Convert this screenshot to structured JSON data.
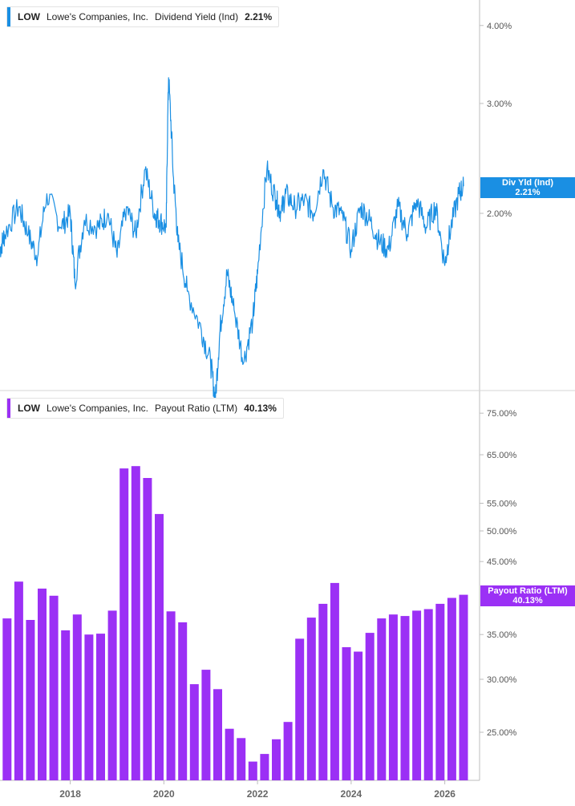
{
  "colors": {
    "yield_line": "#1a8fe3",
    "payout_bar": "#9b30f5",
    "axis": "#bdbdbd",
    "divider": "#d4d4d4"
  },
  "chart_data": [
    {
      "type": "line",
      "legend": {
        "ticker": "LOW",
        "company": "Lowe's Companies, Inc.",
        "metric": "Dividend Yield (Ind)",
        "value": "2.21%"
      },
      "flag": {
        "label": "Div Yld (Ind)",
        "value": "2.21%"
      },
      "yscale": "log",
      "yticks": [
        {
          "value": 2.0,
          "label": "2.00%"
        },
        {
          "value": 3.0,
          "label": "3.00%"
        },
        {
          "value": 4.0,
          "label": "4.00%"
        }
      ],
      "last_value": 2.21,
      "x": [
        2016.5,
        2016.6,
        2016.9,
        2017.1,
        2017.3,
        2017.5,
        2017.8,
        2018.0,
        2018.1,
        2018.3,
        2018.6,
        2018.8,
        2019.0,
        2019.2,
        2019.4,
        2019.6,
        2019.8,
        2019.9,
        2020.05,
        2020.1,
        2020.2,
        2020.3,
        2020.5,
        2020.8,
        2021.0,
        2021.1,
        2021.2,
        2021.35,
        2021.5,
        2021.7,
        2021.9,
        2022.0,
        2022.2,
        2022.4,
        2022.5,
        2022.6,
        2022.8,
        2023.0,
        2023.2,
        2023.4,
        2023.6,
        2023.8,
        2024.0,
        2024.2,
        2024.4,
        2024.6,
        2024.8,
        2025.0,
        2025.2,
        2025.4,
        2025.6,
        2025.8,
        2026.0,
        2026.1,
        2026.3,
        2026.4
      ],
      "y": [
        1.75,
        1.85,
        2.05,
        1.85,
        1.7,
        2.15,
        1.9,
        2.0,
        1.55,
        1.95,
        1.9,
        2.0,
        1.7,
        2.05,
        1.85,
        2.35,
        2.0,
        1.95,
        1.9,
        3.3,
        2.3,
        1.8,
        1.5,
        1.3,
        1.15,
        1.0,
        1.3,
        1.6,
        1.4,
        1.15,
        1.35,
        1.6,
        2.35,
        2.1,
        2.0,
        2.15,
        2.05,
        2.1,
        2.0,
        2.35,
        2.05,
        2.0,
        1.75,
        2.05,
        1.95,
        1.8,
        1.75,
        2.05,
        1.85,
        2.1,
        1.9,
        2.05,
        1.65,
        1.85,
        2.15,
        2.21
      ]
    },
    {
      "type": "bar",
      "legend": {
        "ticker": "LOW",
        "company": "Lowe's Companies, Inc.",
        "metric": "Payout Ratio (LTM)",
        "value": "40.13%"
      },
      "flag": {
        "label": "Payout Ratio (LTM)",
        "value": "40.13%"
      },
      "yscale": "log",
      "yticks": [
        {
          "value": 25,
          "label": "25.00%"
        },
        {
          "value": 30,
          "label": "30.00%"
        },
        {
          "value": 35,
          "label": "35.00%"
        },
        {
          "value": 45,
          "label": "45.00%"
        },
        {
          "value": 50,
          "label": "50.00%"
        },
        {
          "value": 55,
          "label": "55.00%"
        },
        {
          "value": 65,
          "label": "65.00%"
        },
        {
          "value": 75,
          "label": "75.00%"
        }
      ],
      "xticks": [
        {
          "value": 2018,
          "label": "2018"
        },
        {
          "value": 2020,
          "label": "2020"
        },
        {
          "value": 2022,
          "label": "2022"
        },
        {
          "value": 2024,
          "label": "2024"
        },
        {
          "value": 2026,
          "label": "2026"
        }
      ],
      "x": [
        2016.4,
        2016.65,
        2016.9,
        2017.15,
        2017.4,
        2017.65,
        2017.9,
        2018.15,
        2018.4,
        2018.65,
        2018.9,
        2019.15,
        2019.4,
        2019.65,
        2019.9,
        2020.15,
        2020.4,
        2020.65,
        2020.9,
        2021.15,
        2021.4,
        2021.65,
        2021.9,
        2022.15,
        2022.4,
        2022.65,
        2022.9,
        2023.15,
        2023.4,
        2023.65,
        2023.9,
        2024.15,
        2024.4,
        2024.65,
        2024.9,
        2025.15,
        2025.4,
        2025.65,
        2025.9,
        2026.15,
        2026.4
      ],
      "values": [
        36.5,
        37.0,
        42.0,
        36.8,
        41.0,
        40.0,
        35.5,
        37.5,
        35.0,
        35.1,
        38.0,
        62.0,
        62.5,
        60.0,
        53.0,
        37.9,
        36.5,
        29.5,
        31.0,
        29.0,
        25.3,
        24.5,
        22.6,
        23.2,
        24.4,
        25.9,
        34.5,
        37.1,
        38.9,
        41.8,
        33.5,
        33.0,
        35.2,
        37.0,
        37.5,
        37.3,
        38.0,
        38.2,
        38.9,
        39.7,
        40.13
      ]
    }
  ]
}
